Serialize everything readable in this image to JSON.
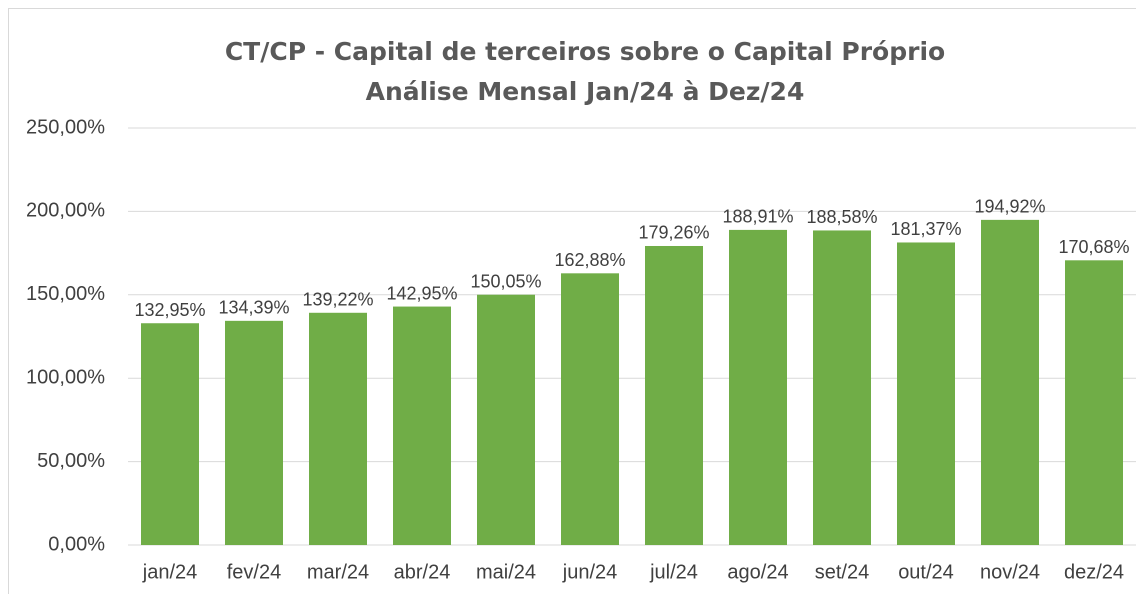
{
  "chart_data": {
    "type": "bar",
    "title": "CT/CP - Capital de terceiros sobre o Capital Próprio",
    "subtitle": "Análise Mensal Jan/24 à Dez/24",
    "categories": [
      "jan/24",
      "fev/24",
      "mar/24",
      "abr/24",
      "mai/24",
      "jun/24",
      "jul/24",
      "ago/24",
      "set/24",
      "out/24",
      "nov/24",
      "dez/24"
    ],
    "values": [
      132.95,
      134.39,
      139.22,
      142.95,
      150.05,
      162.88,
      179.26,
      188.91,
      188.58,
      181.37,
      194.92,
      170.68
    ],
    "value_labels": [
      "132,95%",
      "134,39%",
      "139,22%",
      "142,95%",
      "150,05%",
      "162,88%",
      "179,26%",
      "188,91%",
      "188,58%",
      "181,37%",
      "194,92%",
      "170,68%"
    ],
    "color": "#70ad47",
    "ylim": [
      0,
      250
    ],
    "yticks": [
      {
        "value": 0,
        "label": "0,00%"
      },
      {
        "value": 50,
        "label": "50,00%"
      },
      {
        "value": 100,
        "label": "100,00%"
      },
      {
        "value": 150,
        "label": "150,00%"
      },
      {
        "value": 200,
        "label": "200,00%"
      },
      {
        "value": 250,
        "label": "250,00%"
      }
    ],
    "grid": true
  }
}
